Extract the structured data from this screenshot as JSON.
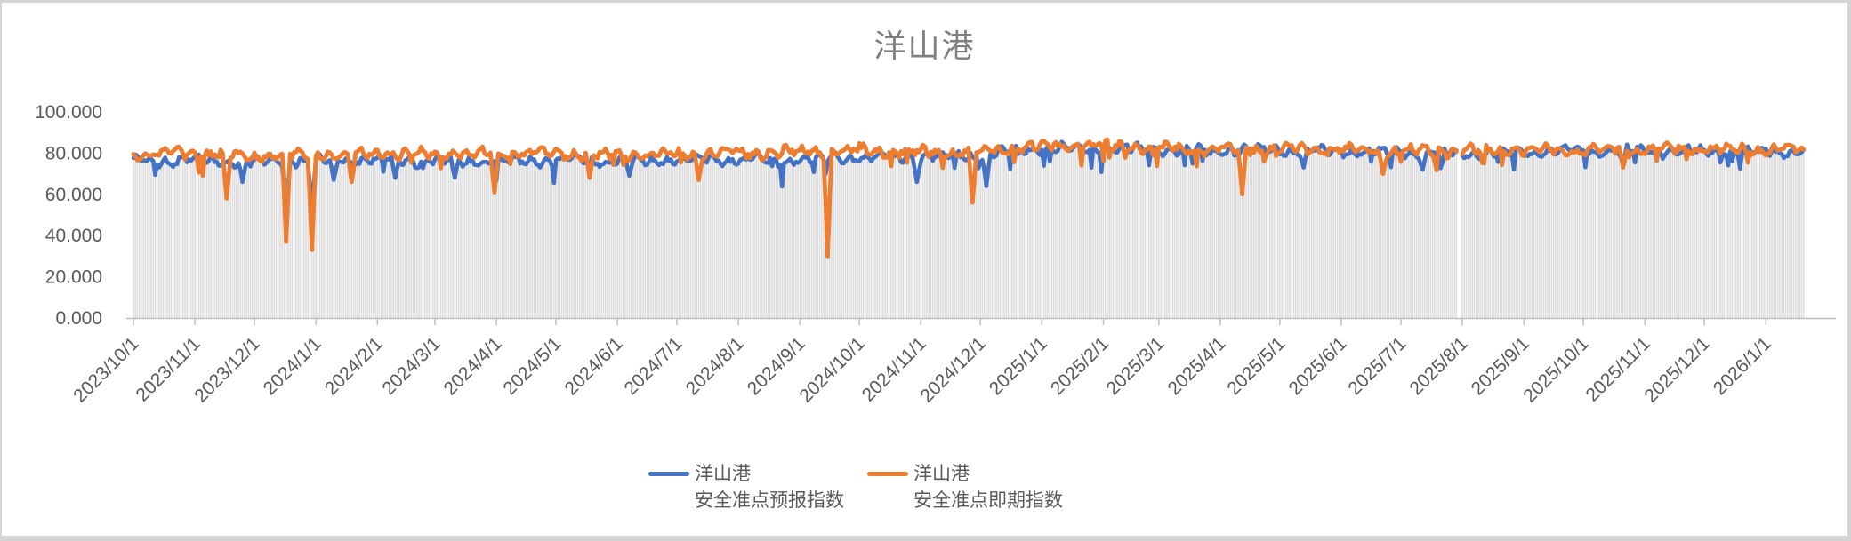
{
  "chart_data": {
    "type": "line",
    "title": "洋山港",
    "ylim": [
      0,
      100
    ],
    "y_tick_values": [
      0,
      20,
      40,
      60,
      80,
      100
    ],
    "y_tick_labels": [
      "0.000",
      "20.000",
      "40.000",
      "60.000",
      "80.000",
      "100.000"
    ],
    "x_tick_labels": [
      "2023/10/1",
      "2023/11/1",
      "2023/12/1",
      "2024/1/1",
      "2024/2/1",
      "2024/3/1",
      "2024/4/1",
      "2024/5/1",
      "2024/6/1",
      "2024/7/1",
      "2024/8/1",
      "2024/9/1",
      "2024/10/1",
      "2024/11/1",
      "2024/12/1",
      "2025/1/1",
      "2025/2/1",
      "2025/3/1",
      "2025/4/1",
      "2025/5/1",
      "2025/6/1",
      "2025/7/1",
      "2025/8/1",
      "2025/9/1",
      "2025/10/1",
      "2025/11/1",
      "2025/12/1",
      "2026/1/1"
    ],
    "x_tick_day_offsets": [
      0,
      31,
      61,
      92,
      123,
      152,
      183,
      213,
      244,
      274,
      305,
      336,
      366,
      397,
      427,
      458,
      489,
      517,
      548,
      578,
      609,
      639,
      670,
      701,
      731,
      762,
      792,
      823
    ],
    "days_total": 843,
    "grid": false,
    "legend_position": "bottom",
    "series": [
      {
        "name": "洋山港 安全准点预报指数",
        "legend_lines": [
          "洋山港",
          "安全准点预报指数"
        ],
        "color": "#4472C4",
        "monthly_levels": [
          76.5,
          76.5,
          75.5,
          76.5,
          76.5,
          76,
          76,
          76.5,
          76,
          76.5,
          77,
          77,
          78,
          78,
          79,
          82.5,
          82.5,
          81.5,
          81,
          81.5,
          81,
          80.5,
          80,
          80.5,
          81,
          81,
          81,
          81
        ],
        "noise_amp": 1.3,
        "dips": [
          [
            55,
            66
          ],
          [
            77,
            52
          ],
          [
            90,
            53
          ],
          [
            101,
            67
          ],
          [
            132,
            68
          ],
          [
            162,
            68
          ],
          [
            250,
            69
          ],
          [
            395,
            66
          ],
          [
            430,
            64
          ],
          [
            590,
            73
          ],
          [
            650,
            72
          ],
          [
            751,
            74
          ]
        ]
      },
      {
        "name": "洋山港 安全准点即期指数",
        "legend_lines": [
          "洋山港",
          "安全准点即期指数"
        ],
        "color": "#ED7D31",
        "monthly_levels": [
          79,
          80,
          78.5,
          79.5,
          80,
          79.5,
          79.5,
          80,
          79,
          79.5,
          80,
          80.5,
          81.5,
          80.5,
          80.5,
          83.5,
          83.5,
          82.5,
          82,
          82,
          81.5,
          81,
          81,
          81.5,
          81.5,
          82,
          82,
          81.5
        ],
        "noise_amp": 1.5,
        "dips": [
          [
            47,
            58
          ],
          [
            77,
            37
          ],
          [
            90,
            33
          ],
          [
            110,
            66
          ],
          [
            182,
            61
          ],
          [
            230,
            68
          ],
          [
            285,
            67
          ],
          [
            350,
            30
          ],
          [
            423,
            56
          ],
          [
            559,
            60
          ],
          [
            630,
            70
          ],
          [
            751,
            73
          ]
        ]
      }
    ],
    "background_bars": {
      "color": "#dcdcdc",
      "gap_days": [
        668,
        669
      ]
    },
    "axis_color": "#bfbfbf",
    "label_color": "#595959",
    "title_color": "#7f7f7f"
  }
}
